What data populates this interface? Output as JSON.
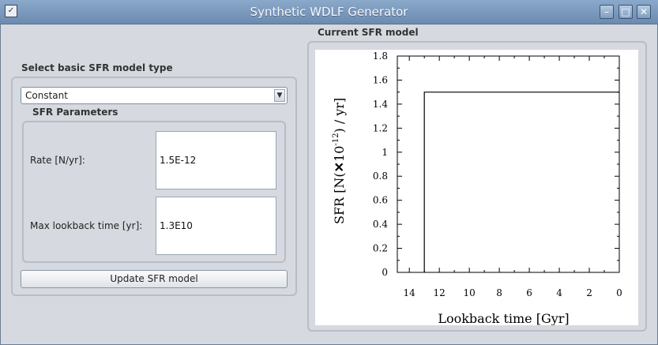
{
  "window": {
    "title": "Synthetic WDLF Generator",
    "controls": {
      "minimize": "–",
      "maximize": "□",
      "close": "✕"
    }
  },
  "left_panel": {
    "model_type_label": "Select basic SFR model type",
    "model_type_selected": "Constant",
    "params_label": "SFR Parameters",
    "rate_label": "Rate [N/yr]:",
    "rate_value": "1.5E-12",
    "lookback_label": "Max lookback time [yr]:",
    "lookback_value": "1.3E10",
    "update_button": "Update SFR model"
  },
  "right_panel": {
    "title": "Current SFR model"
  },
  "chart_data": {
    "type": "line",
    "xlabel": "Lookback time [Gyr]",
    "ylabel_parts": {
      "main": "SFR [N(",
      "times": "✕",
      "ten": "10",
      "exp": "-12",
      "tail": ") / yr]"
    },
    "x_ticks": [
      "14",
      "12",
      "10",
      "8",
      "6",
      "4",
      "2",
      "0"
    ],
    "y_ticks": [
      "0",
      "0.2",
      "0.4",
      "0.6",
      "0.8",
      "1",
      "1.2",
      "1.4",
      "1.6",
      "1.8"
    ],
    "xlim": [
      14.8,
      0
    ],
    "ylim": [
      0,
      1.8
    ],
    "x_reversed": true,
    "series": [
      {
        "x": [
          13,
          13,
          0
        ],
        "y": [
          0,
          1.5,
          1.5
        ]
      }
    ]
  }
}
